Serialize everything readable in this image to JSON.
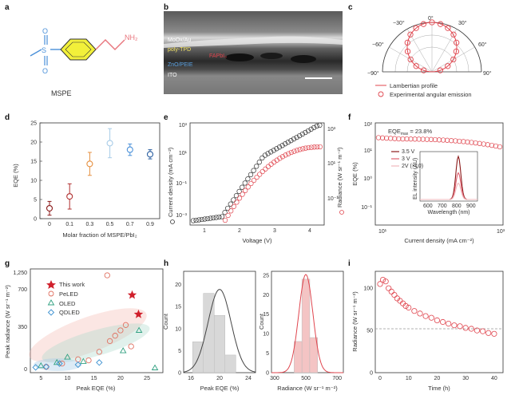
{
  "panel_labels": {
    "a": "a",
    "b": "b",
    "c": "c",
    "d": "d",
    "e": "e",
    "f": "f",
    "g": "g",
    "h": "h",
    "i": "i"
  },
  "panel_a": {
    "molecule_name": "MSPE",
    "s_label": "S",
    "o_top": "O",
    "o_bottom": "O",
    "amine": "NH₂",
    "colors": {
      "sulfonyl": "#4a90d9",
      "ring": "#f2f03a",
      "amine": "#e8747c"
    }
  },
  "panel_b": {
    "layers": [
      {
        "name": "MoOx/Au",
        "color": "#ffffff"
      },
      {
        "name": "poly-TPD",
        "color": "#f0e060"
      },
      {
        "name": "FAPbI₃",
        "color": "#e0454e"
      },
      {
        "name": "ZnO/PEIE",
        "color": "#5aa0e0"
      },
      {
        "name": "ITO",
        "color": "#ffffff"
      }
    ]
  },
  "panel_c": {
    "angle_labels": [
      "0°",
      "30°",
      "60°",
      "90°",
      "−30°",
      "−60°",
      "−90°"
    ],
    "legend": [
      "Lambertian profile",
      "Experimental angular emission"
    ],
    "chart_data": {
      "type": "scatter",
      "angles_deg": [
        -80,
        -70,
        -60,
        -50,
        -40,
        -30,
        -20,
        -10,
        0,
        10,
        20,
        30,
        40,
        50,
        60,
        70,
        80
      ],
      "intensity": [
        0.17,
        0.34,
        0.5,
        0.64,
        0.77,
        0.87,
        0.94,
        0.98,
        1.0,
        0.98,
        0.94,
        0.87,
        0.77,
        0.64,
        0.5,
        0.34,
        0.17
      ]
    }
  },
  "panel_d": {
    "ylabel": "EQE (%)",
    "xlabel": "Molar fraction of MSPE/PbI₂",
    "chart_data": {
      "type": "scatter",
      "x_labels": [
        "0",
        "0.1",
        "0.3",
        "0.5",
        "0.7",
        "0.9"
      ],
      "y": [
        2.7,
        5.8,
        14.3,
        19.7,
        18.0,
        16.8
      ],
      "err": [
        1.8,
        3.3,
        3.0,
        3.8,
        1.5,
        1.2
      ],
      "colors": [
        "#8b1a1a",
        "#b03030",
        "#e69040",
        "#a8cce8",
        "#4a90d9",
        "#2b5fa0"
      ],
      "ylim": [
        0,
        25
      ],
      "yticks": [
        0,
        5,
        10,
        15,
        20,
        25
      ]
    }
  },
  "panel_e": {
    "ylabel_left": "Current density (mA cm⁻²)",
    "ylabel_right": "Radiance (W sr⁻¹ m⁻²)",
    "xlabel": "Voltage (V)",
    "left_ticks": [
      "10³",
      "10¹",
      "10⁻¹",
      "10⁻³"
    ],
    "right_ticks": [
      "10³",
      "10¹",
      "10⁻¹"
    ],
    "x_ticks": [
      "1",
      "2",
      "3",
      "4"
    ],
    "chart_data": {
      "type": "scatter",
      "xlim": [
        0.2,
        4.4
      ]
    }
  },
  "panel_f": {
    "annotation": "EQE",
    "annotation_sub": "max",
    "annotation_value": " = 23.8%",
    "ylabel": "EQE (%)",
    "xlabel": "Current density (mA cm⁻²)",
    "y_ticks": [
      "10²",
      "10¹",
      "10⁰",
      "10⁻¹"
    ],
    "x_ticks": [
      "10¹",
      "10³"
    ],
    "inset": {
      "legend": [
        "3.5 V",
        "3 V",
        "2V (×10)"
      ],
      "colors": [
        "#8b1a1a",
        "#e06070",
        "#f0b8bc"
      ],
      "ylabel": "EL intensity (AU)",
      "xlabel": "Wavelength (nm)",
      "x_ticks": [
        "600",
        "700",
        "800",
        "900"
      ]
    },
    "chart_data": {
      "type": "scatter",
      "eqe_max": 23.8
    }
  },
  "panel_g": {
    "ylabel": "Peak radiance (W sr⁻¹ m⁻²)",
    "xlabel": "Peak EQE (%)",
    "y_ticks": [
      "1,250",
      "700",
      "350",
      "0"
    ],
    "x_ticks": [
      "5",
      "10",
      "15",
      "20",
      "25"
    ],
    "legend": [
      "This work",
      "PeLED",
      "OLED",
      "QDLED"
    ],
    "chart_data": {
      "type": "scatter",
      "series": [
        {
          "name": "This work",
          "x": [
            22.2,
            23.4
          ],
          "y": [
            680,
            500
          ]
        },
        {
          "name": "PeLED",
          "x": [
            6,
            9,
            12,
            14,
            16,
            17.5,
            18,
            19,
            20,
            21,
            22
          ],
          "y": [
            10,
            40,
            80,
            70,
            150,
            1250,
            250,
            300,
            350,
            400,
            200
          ]
        },
        {
          "name": "OLED",
          "x": [
            5,
            8,
            10,
            13,
            20.5,
            23.5,
            26.5
          ],
          "y": [
            20,
            50,
            100,
            60,
            160,
            350,
            0
          ]
        },
        {
          "name": "QDLED",
          "x": [
            4,
            6,
            8.5,
            12,
            16
          ],
          "y": [
            5,
            10,
            40,
            30,
            50
          ]
        }
      ]
    }
  },
  "panel_h": {
    "left": {
      "ylabel": "Count",
      "xlabel": "Peak EQE (%)",
      "x_ticks": [
        "16",
        "20",
        "24"
      ],
      "y_ticks": [
        "0",
        "5",
        "10",
        "15",
        "20"
      ],
      "chart_data": {
        "type": "bar",
        "bins": [
          17,
          18.5,
          20,
          21.5,
          23
        ],
        "counts": [
          7,
          18,
          13,
          4,
          0
        ],
        "ylim": [
          0,
          23
        ]
      }
    },
    "right": {
      "ylabel": "Count",
      "xlabel": "Radiance (W sr⁻¹ m⁻²)",
      "x_ticks": [
        "300",
        "500",
        "700"
      ],
      "y_ticks": [
        "0",
        "5",
        "10",
        "15",
        "20",
        "25"
      ],
      "chart_data": {
        "type": "bar",
        "bins": [
          450,
          500,
          550
        ],
        "counts": [
          8,
          24,
          9
        ],
        "ylim": [
          0,
          26
        ]
      }
    }
  },
  "panel_i": {
    "ylabel": "Radiance (W sr⁻¹ m⁻²)",
    "xlabel": "Time (h)",
    "y_ticks": [
      "0",
      "50",
      "100"
    ],
    "x_ticks": [
      "0",
      "10",
      "20",
      "30",
      "40"
    ],
    "chart_data": {
      "type": "scatter",
      "x": [
        0,
        1,
        2,
        3,
        4,
        5,
        6,
        7,
        8,
        9,
        10,
        12,
        14,
        16,
        18,
        20,
        22,
        24,
        26,
        28,
        30,
        32,
        34,
        36,
        38,
        40
      ],
      "y": [
        105,
        110,
        108,
        100,
        96,
        92,
        88,
        85,
        82,
        79,
        77,
        73,
        70,
        67,
        65,
        62,
        60,
        58,
        56,
        55,
        53,
        52,
        50,
        49,
        47,
        46
      ],
      "ylim": [
        0,
        120
      ],
      "xlim": [
        0,
        42
      ],
      "reference": 52
    }
  }
}
